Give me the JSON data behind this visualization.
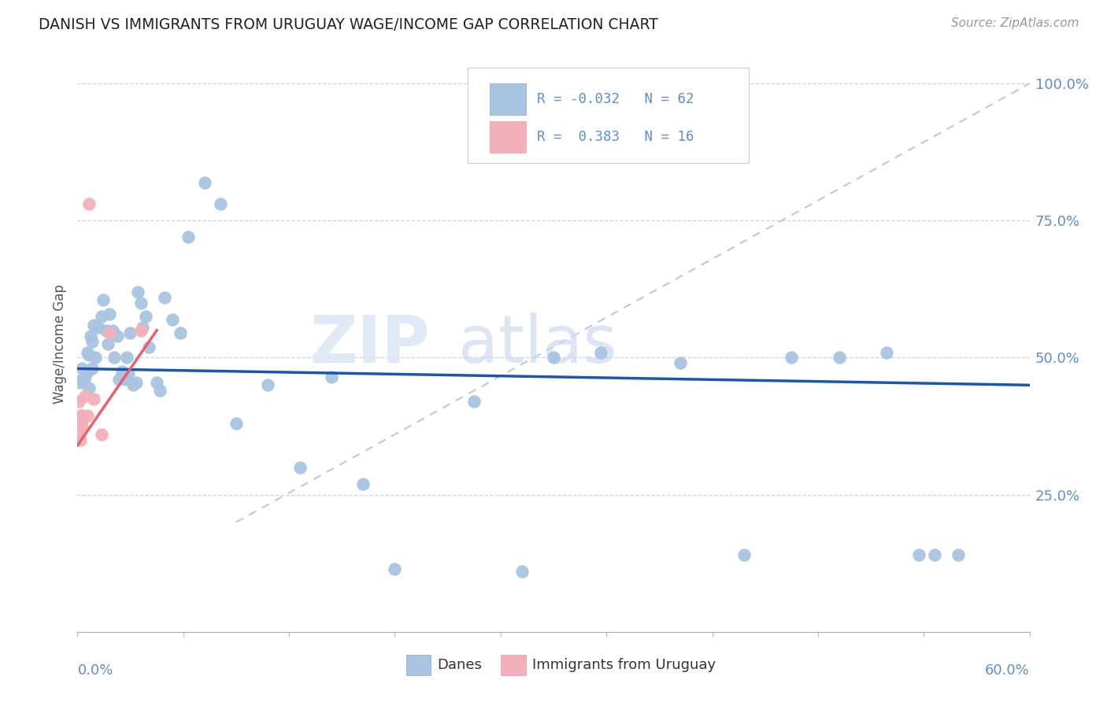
{
  "title": "DANISH VS IMMIGRANTS FROM URUGUAY WAGE/INCOME GAP CORRELATION CHART",
  "source": "Source: ZipAtlas.com",
  "ylabel": "Wage/Income Gap",
  "xlim": [
    0.0,
    0.6
  ],
  "ylim": [
    0.0,
    1.05
  ],
  "yticks": [
    0.25,
    0.5,
    0.75,
    1.0
  ],
  "ytick_labels": [
    "25.0%",
    "50.0%",
    "75.0%",
    "100.0%"
  ],
  "blue_scatter_color": "#a8c4e0",
  "pink_scatter_color": "#f4b0ba",
  "blue_line_color": "#1a56b0",
  "pink_line_color": "#e8606a",
  "gray_dash_color": "#c0c8d8",
  "danes_x": [
    0.002,
    0.003,
    0.003,
    0.004,
    0.005,
    0.006,
    0.006,
    0.007,
    0.007,
    0.008,
    0.009,
    0.009,
    0.01,
    0.011,
    0.013,
    0.015,
    0.016,
    0.018,
    0.019,
    0.02,
    0.022,
    0.023,
    0.025,
    0.026,
    0.028,
    0.03,
    0.031,
    0.032,
    0.033,
    0.035,
    0.037,
    0.038,
    0.04,
    0.041,
    0.043,
    0.045,
    0.05,
    0.052,
    0.055,
    0.06,
    0.065,
    0.07,
    0.08,
    0.09,
    0.1,
    0.12,
    0.14,
    0.16,
    0.18,
    0.2,
    0.25,
    0.28,
    0.3,
    0.33,
    0.38,
    0.42,
    0.45,
    0.48,
    0.51,
    0.53,
    0.54,
    0.555
  ],
  "danes_y": [
    0.455,
    0.46,
    0.48,
    0.46,
    0.465,
    0.475,
    0.51,
    0.505,
    0.445,
    0.54,
    0.53,
    0.48,
    0.56,
    0.5,
    0.555,
    0.575,
    0.605,
    0.55,
    0.525,
    0.58,
    0.55,
    0.5,
    0.54,
    0.46,
    0.475,
    0.46,
    0.5,
    0.47,
    0.545,
    0.45,
    0.455,
    0.62,
    0.6,
    0.555,
    0.575,
    0.52,
    0.455,
    0.44,
    0.61,
    0.57,
    0.545,
    0.72,
    0.82,
    0.78,
    0.38,
    0.45,
    0.3,
    0.465,
    0.27,
    0.115,
    0.42,
    0.11,
    0.5,
    0.51,
    0.49,
    0.14,
    0.5,
    0.5,
    0.51,
    0.14,
    0.14,
    0.14
  ],
  "uruguay_x": [
    0.001,
    0.001,
    0.001,
    0.002,
    0.002,
    0.002,
    0.003,
    0.003,
    0.004,
    0.005,
    0.006,
    0.007,
    0.01,
    0.015,
    0.02,
    0.04
  ],
  "uruguay_y": [
    0.36,
    0.37,
    0.42,
    0.35,
    0.395,
    0.38,
    0.375,
    0.395,
    0.39,
    0.43,
    0.395,
    0.78,
    0.425,
    0.36,
    0.545,
    0.55
  ],
  "blue_trend_x0": 0.0,
  "blue_trend_x1": 0.6,
  "blue_trend_y0": 0.48,
  "blue_trend_y1": 0.45,
  "pink_trend_x0": 0.0,
  "pink_trend_x1": 0.05,
  "pink_trend_y0": 0.34,
  "pink_trend_y1": 0.55,
  "gray_trend_x0": 0.1,
  "gray_trend_x1": 0.6,
  "gray_trend_y0": 0.2,
  "gray_trend_y1": 1.0
}
